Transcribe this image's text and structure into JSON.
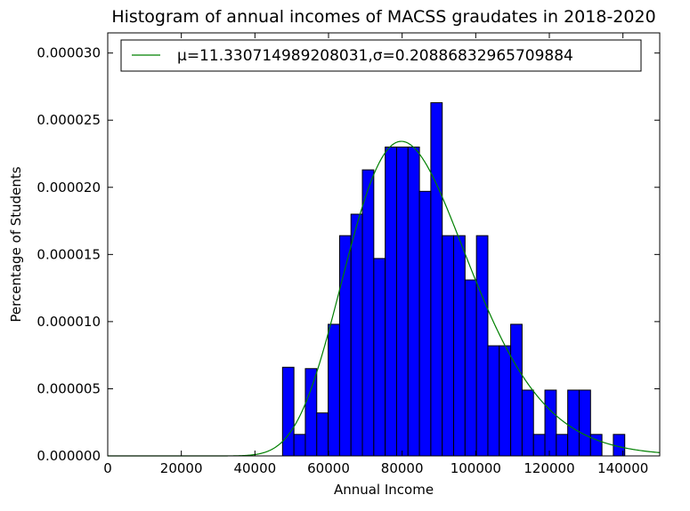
{
  "chart_data": {
    "type": "bar",
    "title": "Histogram of annual incomes of MACSS graudates in 2018-2020",
    "xlabel": "Annual Income",
    "ylabel": "Percentage of Students",
    "xlim": [
      0,
      150000
    ],
    "ylim": [
      0,
      3.15e-05
    ],
    "xticks": [
      0,
      20000,
      40000,
      60000,
      80000,
      100000,
      120000,
      140000
    ],
    "xtick_labels": [
      "0",
      "20000",
      "40000",
      "60000",
      "80000",
      "100000",
      "120000",
      "140000"
    ],
    "yticks": [
      0,
      5e-06,
      1e-05,
      1.5e-05,
      2e-05,
      2.5e-05,
      3e-05
    ],
    "ytick_labels": [
      "0.000000",
      "0.000005",
      "0.000010",
      "0.000015",
      "0.000020",
      "0.000025",
      "0.000030"
    ],
    "grid": false,
    "legend_position": "top",
    "bar_color": "#0000ff",
    "line_color": "#008000",
    "histogram": {
      "bin_edges": [
        47500,
        50600,
        53700,
        56800,
        59900,
        63000,
        66100,
        69200,
        72300,
        75400,
        78500,
        81600,
        84700,
        87800,
        90900,
        94000,
        97100,
        100200,
        103300,
        106400,
        109500,
        112600,
        115700,
        118800,
        121900,
        125000,
        128100,
        131200,
        134300,
        137400,
        140500
      ],
      "values": [
        6.6e-06,
        1.6e-06,
        6.5e-06,
        3.2e-06,
        9.8e-06,
        1.64e-05,
        1.8e-05,
        2.13e-05,
        1.47e-05,
        2.3e-05,
        2.3e-05,
        2.3e-05,
        1.97e-05,
        2.63e-05,
        1.64e-05,
        1.64e-05,
        1.31e-05,
        1.64e-05,
        8.2e-06,
        8.2e-06,
        9.8e-06,
        4.9e-06,
        1.6e-06,
        4.9e-06,
        1.6e-06,
        4.9e-06,
        4.9e-06,
        1.6e-06,
        0,
        1.6e-06
      ]
    },
    "series": [
      {
        "name": "μ=11.330714989208031,σ=0.20886832965709884",
        "type": "line",
        "distribution": "lognormal",
        "mu": 11.330714989208031,
        "sigma": 0.20886832965709884
      }
    ]
  }
}
